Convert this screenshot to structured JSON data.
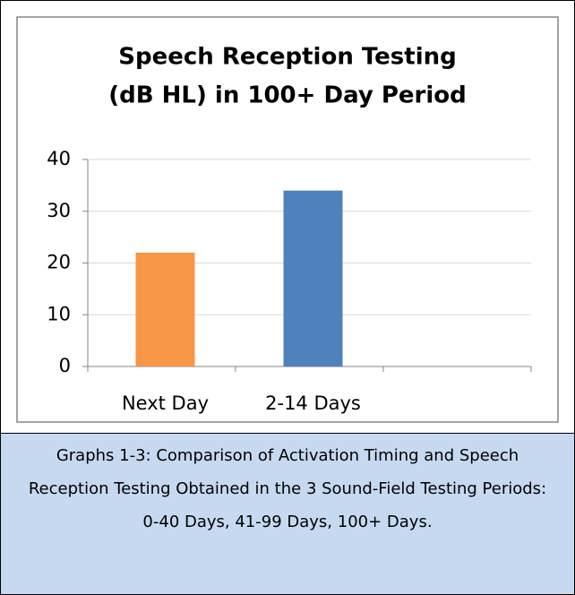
{
  "chart_data": {
    "type": "bar",
    "title": [
      "Speech Reception Testing",
      "(dB HL) in 100+ Day Period"
    ],
    "categories": [
      "Next Day",
      "2-14 Days",
      null
    ],
    "values": [
      22,
      34,
      null
    ],
    "colors": [
      "#f79646",
      "#4f81bd",
      null
    ],
    "ylim": [
      0,
      40
    ],
    "yticks": [
      0,
      10,
      20,
      30,
      40
    ],
    "grid": true
  },
  "caption": "Graphs 1-3: Comparison of Activation Timing and Speech Reception Testing Obtained in the 3 Sound-Field Testing Periods: 0-40 Days, 41-99 Days, 100+ Days."
}
